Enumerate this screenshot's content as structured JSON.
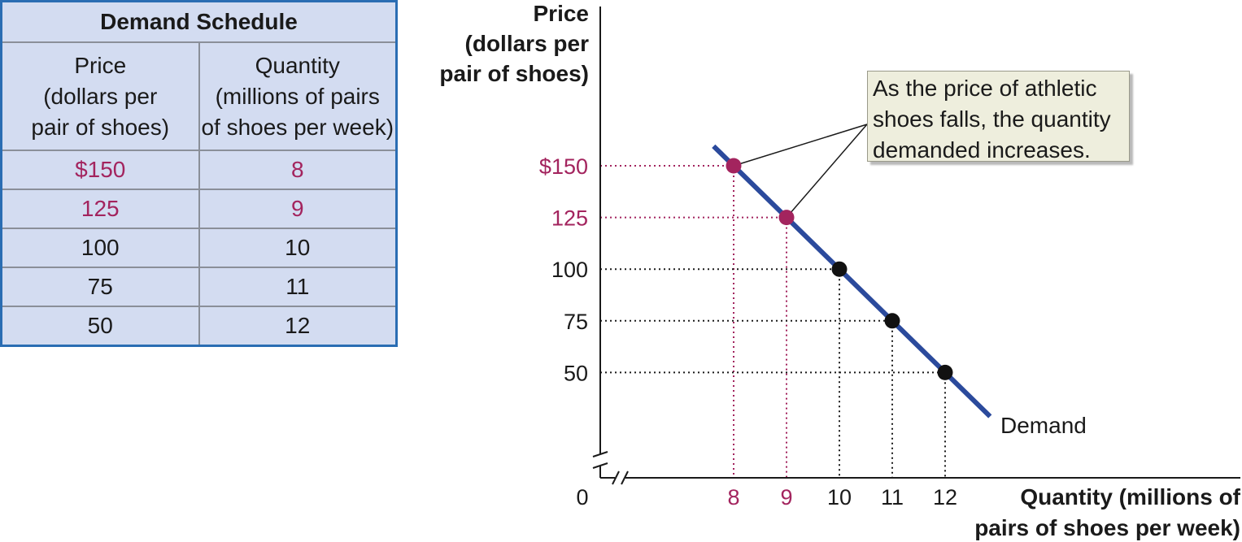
{
  "schedule": {
    "title": "Demand Schedule",
    "price_header": [
      "Price",
      "(dollars per",
      "pair of shoes)"
    ],
    "quantity_header": [
      "Quantity",
      "(millions of pairs",
      "of shoes per week)"
    ],
    "rows": [
      {
        "price": "$150",
        "quantity": "8"
      },
      {
        "price": "125",
        "quantity": "9"
      },
      {
        "price": "100",
        "quantity": "10"
      },
      {
        "price": "75",
        "quantity": "11"
      },
      {
        "price": "50",
        "quantity": "12"
      }
    ]
  },
  "annotation": "As the price of athletic shoes falls, the quantity demanded increases.",
  "colors": {
    "curve": "#2b4a9c",
    "highlight": "#a3245e",
    "point": "#111111",
    "table_bg": "#d3dcf1",
    "table_border": "#2a6db3"
  },
  "chart_data": {
    "type": "line",
    "ylabel": [
      "Price",
      "(dollars per",
      "pair of shoes)"
    ],
    "xlabel": [
      "Quantity (millions of",
      "pairs of shoes per week)"
    ],
    "origin_label": "0",
    "x_ticks": [
      "8",
      "9",
      "10",
      "11",
      "12"
    ],
    "y_ticks": [
      "$150",
      "125",
      "100",
      "75",
      "50"
    ],
    "series": [
      {
        "name": "Demand",
        "points": [
          {
            "x": 8,
            "y": 150,
            "highlight": true
          },
          {
            "x": 9,
            "y": 125,
            "highlight": true
          },
          {
            "x": 10,
            "y": 100,
            "highlight": false
          },
          {
            "x": 11,
            "y": 75,
            "highlight": false
          },
          {
            "x": 12,
            "y": 50,
            "highlight": false
          }
        ]
      }
    ],
    "grid": false,
    "axis_breaks": true
  }
}
